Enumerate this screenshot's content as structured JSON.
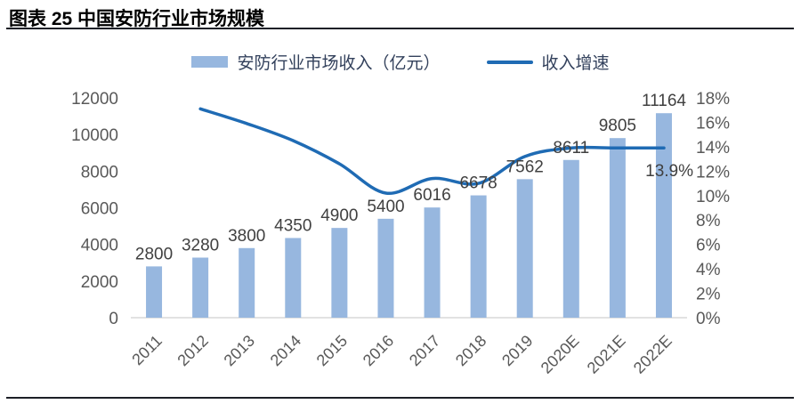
{
  "header": {
    "title": "图表 25 中国安防行业市场规模"
  },
  "chart_data": {
    "type": "bar+line",
    "title": "中国安防行业市场规模",
    "categories": [
      "2011",
      "2012",
      "2013",
      "2014",
      "2015",
      "2016",
      "2017",
      "2018",
      "2019",
      "2020E",
      "2021E",
      "2022E"
    ],
    "series": [
      {
        "name": "安防行业市场收入（亿元）",
        "type": "bar",
        "axis": "left",
        "color": "#97b7df",
        "values": [
          2800,
          3280,
          3800,
          4350,
          4900,
          5400,
          6016,
          6678,
          7562,
          8611,
          9805,
          11164
        ]
      },
      {
        "name": "收入增速",
        "type": "line",
        "axis": "right",
        "color": "#1f6bb4",
        "values": [
          null,
          17.1,
          15.9,
          14.5,
          12.6,
          10.2,
          11.4,
          11.0,
          13.2,
          13.9,
          13.9,
          13.9
        ]
      }
    ],
    "left_axis": {
      "min": 0,
      "max": 12000,
      "step": 2000,
      "ticks": [
        "0",
        "2000",
        "4000",
        "6000",
        "8000",
        "10000",
        "12000"
      ]
    },
    "right_axis": {
      "min": 0,
      "max": 18,
      "step": 2,
      "suffix": "%",
      "ticks": [
        "0%",
        "2%",
        "4%",
        "6%",
        "8%",
        "10%",
        "12%",
        "14%",
        "16%",
        "18%"
      ]
    },
    "bar_labels": [
      "2800",
      "3280",
      "3800",
      "4350",
      "4900",
      "5400",
      "6016",
      "6678",
      "7562",
      "8611",
      "9805",
      "11164"
    ],
    "annotation": {
      "text": "13.9%",
      "target": "2022E"
    },
    "grid": false,
    "legend_position": "top",
    "axis_line_color": "#d9d9d9",
    "tick_label_color": "#595959",
    "data_label_color": "#404040",
    "legend_text_color": "#33415c"
  }
}
